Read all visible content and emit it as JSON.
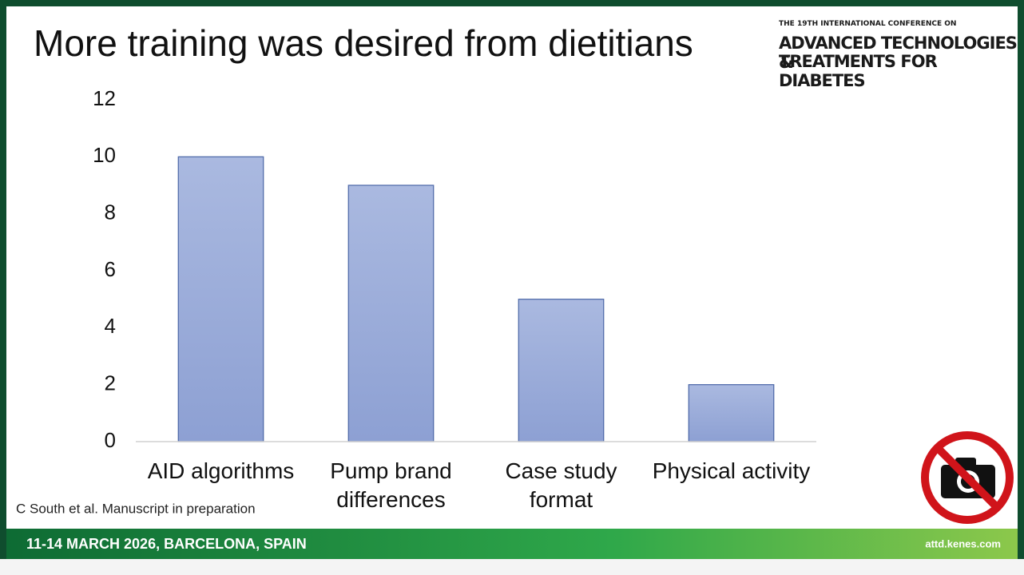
{
  "chart_data": {
    "type": "bar",
    "title": "More training was desired from dietitians",
    "categories": [
      "AID algorithms",
      "Pump brand differences",
      "Case study format",
      "Physical activity"
    ],
    "values": [
      10,
      9,
      5,
      2
    ],
    "color": "#9aacdb",
    "ylim": [
      0,
      12
    ],
    "yticks": [
      0,
      2,
      4,
      6,
      8,
      10,
      12
    ],
    "grid": false
  },
  "conference": {
    "line1": "THE 19TH INTERNATIONAL CONFERENCE ON",
    "line2": "ADVANCED TECHNOLOGIES &",
    "line3": "TREATMENTS FOR DIABETES"
  },
  "footnote": "C South et al. Manuscript in preparation",
  "footer": {
    "dates": "11-14 MARCH 2026, BARCELONA, SPAIN",
    "url": "attd.kenes.com"
  }
}
